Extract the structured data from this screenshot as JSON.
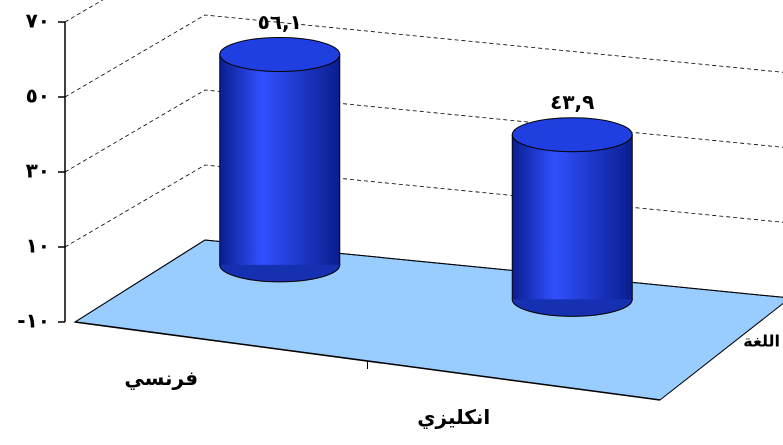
{
  "chart_data": {
    "type": "cylinder",
    "categories": [
      "فرنسي",
      "انكليزي"
    ],
    "values": [
      56.1,
      43.9
    ],
    "value_labels": [
      "٥٦,١",
      "٤٣,٩"
    ],
    "color": "#1f3fe0",
    "floor_color": "#99ccff",
    "xlabel": "اللغة",
    "ylim": [
      -10,
      70
    ],
    "yticks": [
      {
        "value": -10,
        "label": "-١٠"
      },
      {
        "value": 10,
        "label": "١٠"
      },
      {
        "value": 30,
        "label": "٣٠"
      },
      {
        "value": 50,
        "label": "٥٠"
      },
      {
        "value": 70,
        "label": "٧٠"
      }
    ],
    "grid": true
  }
}
